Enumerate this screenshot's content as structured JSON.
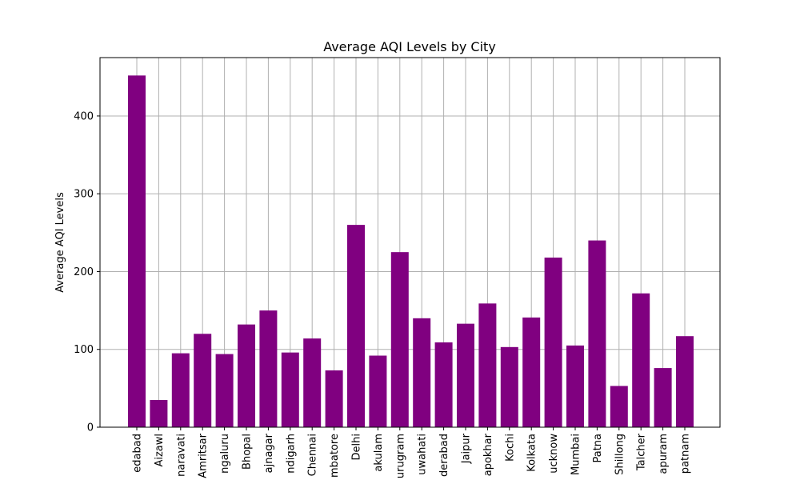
{
  "chart_data": {
    "type": "bar",
    "title": "Average AQI Levels by City",
    "xlabel": "",
    "ylabel": "Average AQI Levels",
    "ylim": [
      0,
      475
    ],
    "yticks": [
      0,
      100,
      200,
      300,
      400
    ],
    "grid": true,
    "bar_color": "#800080",
    "categories": [
      "edabad",
      "Aizawl",
      "naravati",
      "Amritsar",
      "ngaluru",
      "Bhopal",
      "ajnagar",
      "ndigarh",
      "Chennai",
      "mbatore",
      "Delhi",
      "akulam",
      "urugram",
      "uwahati",
      "derabad",
      "Jaipur",
      "apokhar",
      "Kochi",
      "Kolkata",
      "ucknow",
      "Mumbai",
      "Patna",
      "Shillong",
      "Talcher",
      "apuram",
      "patnam"
    ],
    "values": [
      452,
      35,
      95,
      120,
      94,
      132,
      150,
      96,
      114,
      73,
      260,
      92,
      225,
      140,
      109,
      133,
      159,
      103,
      141,
      218,
      105,
      240,
      53,
      172,
      76,
      117
    ]
  }
}
